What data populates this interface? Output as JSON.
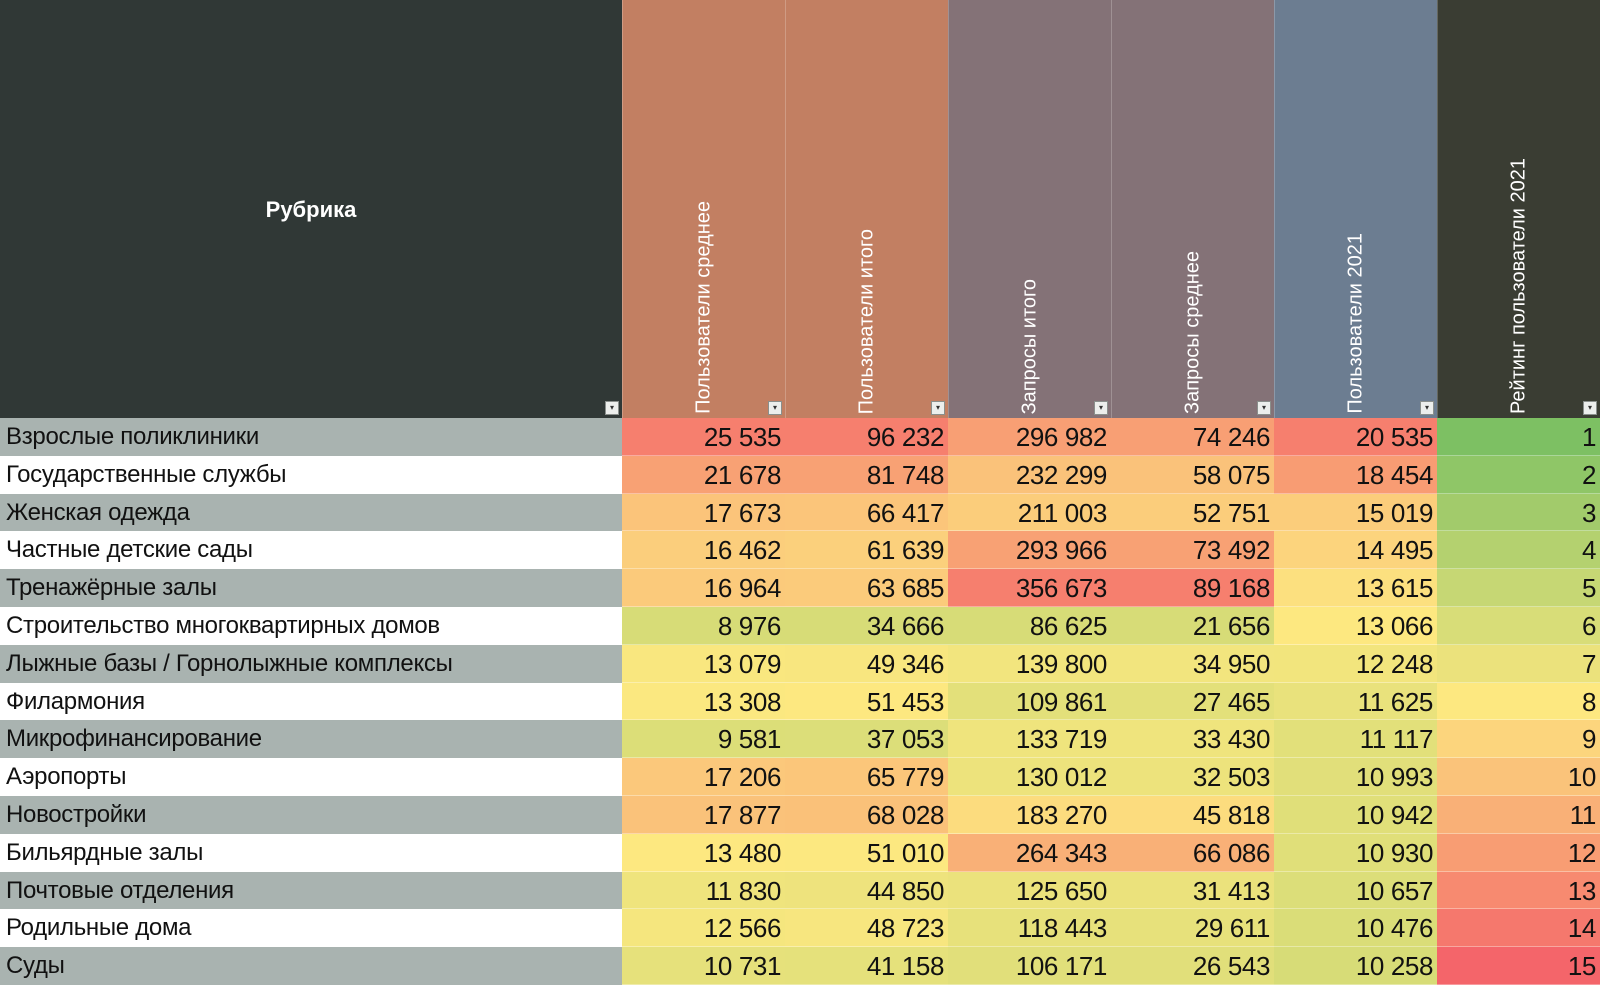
{
  "columns": {
    "rubric": "Рубрика",
    "headers": [
      {
        "label": "Пользователи среднее",
        "color": "#c27f62"
      },
      {
        "label": "Пользователи итого",
        "color": "#c27f62"
      },
      {
        "label": "Запросы итого",
        "color": "#847277"
      },
      {
        "label": "Запросы среднее",
        "color": "#847277"
      },
      {
        "label": "Пользователи 2021",
        "color": "#6c7d91"
      },
      {
        "label": "Рейтинг пользователи 2021",
        "color": "#3a3d33"
      }
    ]
  },
  "rows": [
    {
      "name": "Взрослые поликлиники",
      "values": [
        "25 535",
        "96 232",
        "296 982",
        "74 246",
        "20 535",
        "1"
      ]
    },
    {
      "name": "Государственные службы",
      "values": [
        "21 678",
        "81 748",
        "232 299",
        "58 075",
        "18 454",
        "2"
      ]
    },
    {
      "name": "Женская одежда",
      "values": [
        "17 673",
        "66 417",
        "211 003",
        "52 751",
        "15 019",
        "3"
      ]
    },
    {
      "name": "Частные детские сады",
      "values": [
        "16 462",
        "61 639",
        "293 966",
        "73 492",
        "14 495",
        "4"
      ]
    },
    {
      "name": "Тренажёрные залы",
      "values": [
        "16 964",
        "63 685",
        "356 673",
        "89 168",
        "13 615",
        "5"
      ]
    },
    {
      "name": "Строительство многоквартирных домов",
      "values": [
        "8 976",
        "34 666",
        "86 625",
        "21 656",
        "13 066",
        "6"
      ]
    },
    {
      "name": "Лыжные базы / Горнолыжные комплексы",
      "values": [
        "13 079",
        "49 346",
        "139 800",
        "34 950",
        "12 248",
        "7"
      ]
    },
    {
      "name": "Филармония",
      "values": [
        "13 308",
        "51 453",
        "109 861",
        "27 465",
        "11 625",
        "8"
      ]
    },
    {
      "name": "Микрофинансирование",
      "values": [
        "9 581",
        "37 053",
        "133 719",
        "33 430",
        "11 117",
        "9"
      ]
    },
    {
      "name": "Аэропорты",
      "values": [
        "17 206",
        "65 779",
        "130 012",
        "32 503",
        "10 993",
        "10"
      ]
    },
    {
      "name": "Новостройки",
      "values": [
        "17 877",
        "68 028",
        "183 270",
        "45 818",
        "10 942",
        "11"
      ]
    },
    {
      "name": "Бильярдные залы",
      "values": [
        "13 480",
        "51 010",
        "264 343",
        "66 086",
        "10 930",
        "12"
      ]
    },
    {
      "name": "Почтовые отделения",
      "values": [
        "11 830",
        "44 850",
        "125 650",
        "31 413",
        "10 657",
        "13"
      ]
    },
    {
      "name": "Родильные дома",
      "values": [
        "12 566",
        "48 723",
        "118 443",
        "29 611",
        "10 476",
        "14"
      ]
    },
    {
      "name": "Суды",
      "values": [
        "10 731",
        "41 158",
        "106 171",
        "26 543",
        "10 258",
        "15"
      ]
    }
  ],
  "colors": {
    "header_dark": "#303836",
    "row_gray": "#a9b3b0",
    "row_white": "#ffffff",
    "scale_low": "#7dc063",
    "scale_mid": "#fde880",
    "scale_high": "#f4656a"
  },
  "icons": {
    "filter": "filter-dropdown-icon"
  }
}
